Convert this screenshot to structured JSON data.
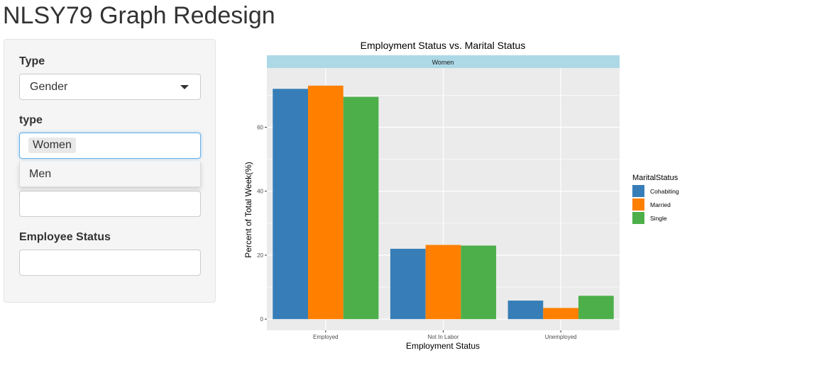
{
  "app": {
    "title": "NLSY79 Graph Redesign"
  },
  "sidebar": {
    "type_label": "Type",
    "type_value": "Gender",
    "subtype_label": "type",
    "subtype_selected": "Women",
    "subtype_option": "Men",
    "employee_status_label": "Employee Status",
    "hidden_input_value": "",
    "employee_status_value": ""
  },
  "chart_data": {
    "type": "bar",
    "title": "Employment Status vs. Marital Status",
    "facet_label": "Women",
    "xlabel": "Employment Status",
    "ylabel": "Percent of Total Week(%)",
    "categories": [
      "Employed",
      "Not In Labor",
      "Unemployed"
    ],
    "series": [
      {
        "name": "Cohabiting",
        "color": "#377eb8",
        "values": [
          72,
          22,
          5.8
        ]
      },
      {
        "name": "Married",
        "color": "#ff7f00",
        "values": [
          73,
          23.2,
          3.5
        ]
      },
      {
        "name": "Single",
        "color": "#4daf4a",
        "values": [
          69.5,
          23,
          7.3
        ]
      }
    ],
    "yticks": [
      0,
      20,
      40,
      60
    ],
    "ylim": [
      -3.5,
      78.5
    ],
    "legend_title": "MaritalStatus",
    "legend_position": "right",
    "grid": true,
    "panel_background": "#ebebeb",
    "strip_background": "#add8e6"
  }
}
